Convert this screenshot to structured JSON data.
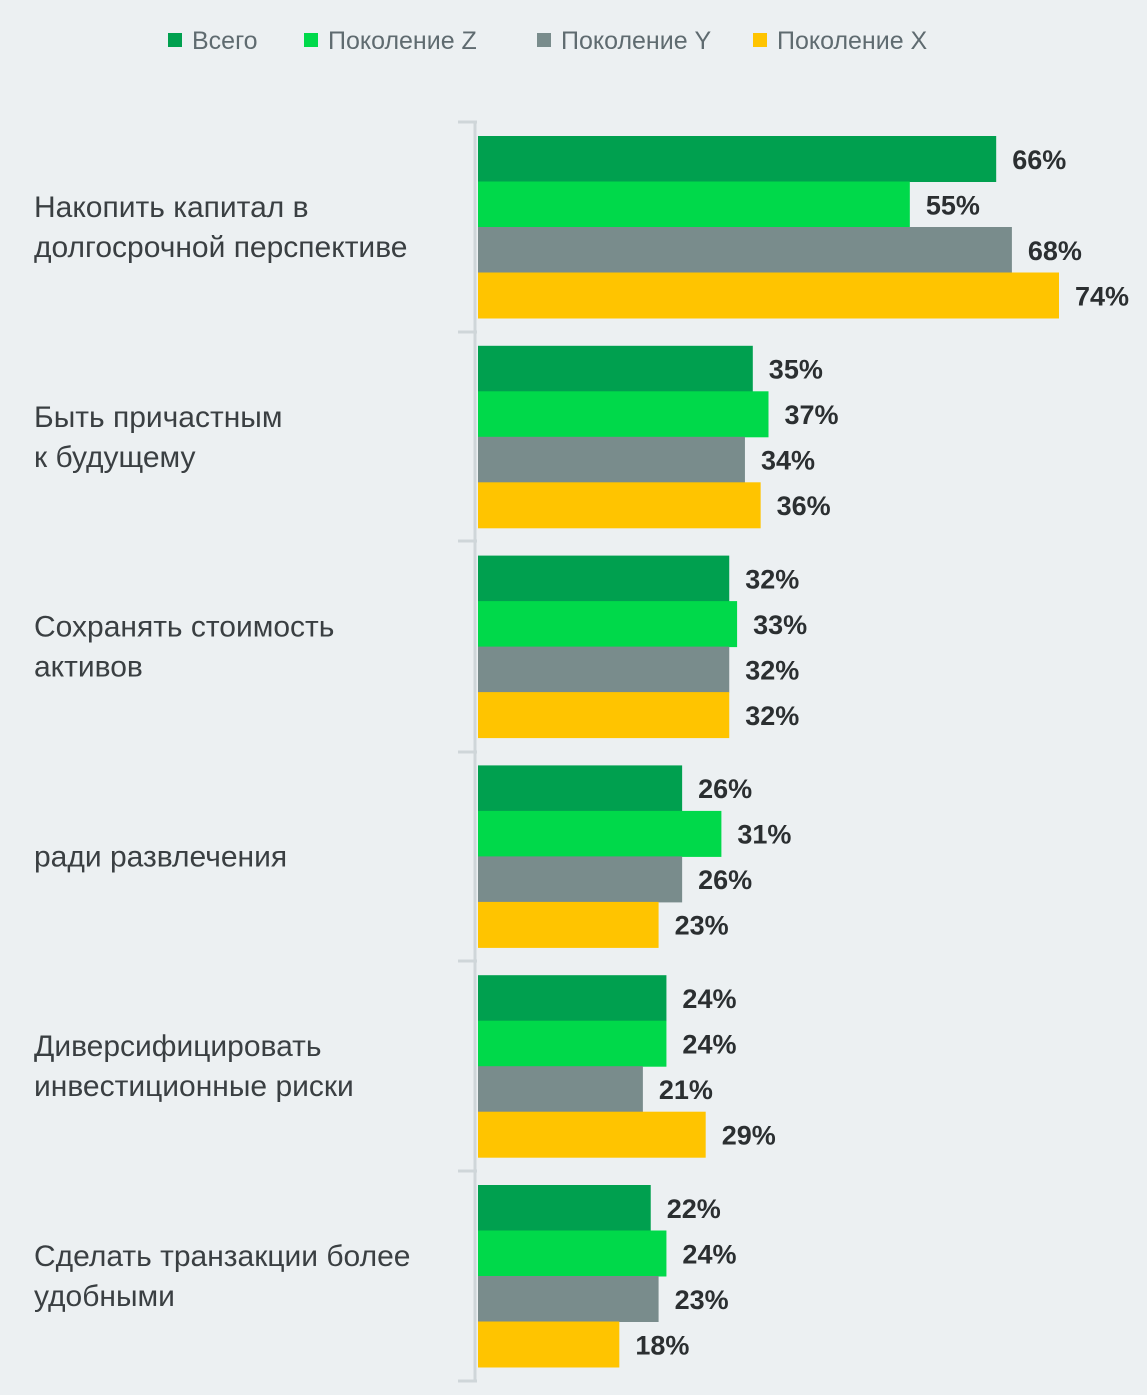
{
  "chart_data": {
    "type": "bar",
    "orientation": "horizontal",
    "legend_position": "top",
    "grid": false,
    "xlim": [
      0,
      75
    ],
    "value_suffix": "%",
    "categories": [
      [
        "Накопить капитал в",
        "долгосрочной перспективе"
      ],
      [
        "Быть причастным",
        "к будущему"
      ],
      [
        "Сохранять стоимость",
        "активов"
      ],
      [
        "ради развлечения"
      ],
      [
        "Диверсифицировать",
        "инвестиционные риски"
      ],
      [
        "Сделать транзакции более",
        "удобными"
      ]
    ],
    "series": [
      {
        "name": "Всего",
        "color": "#00a04f",
        "values": [
          66,
          35,
          32,
          26,
          24,
          22
        ]
      },
      {
        "name": "Поколение Z",
        "color": "#00d94a",
        "values": [
          55,
          37,
          33,
          31,
          24,
          24
        ]
      },
      {
        "name": "Поколение Y",
        "color": "#798c8c",
        "values": [
          68,
          34,
          32,
          26,
          21,
          23
        ]
      },
      {
        "name": "Поколение X",
        "color": "#ffc400",
        "values": [
          74,
          36,
          32,
          23,
          29,
          18
        ]
      }
    ]
  }
}
